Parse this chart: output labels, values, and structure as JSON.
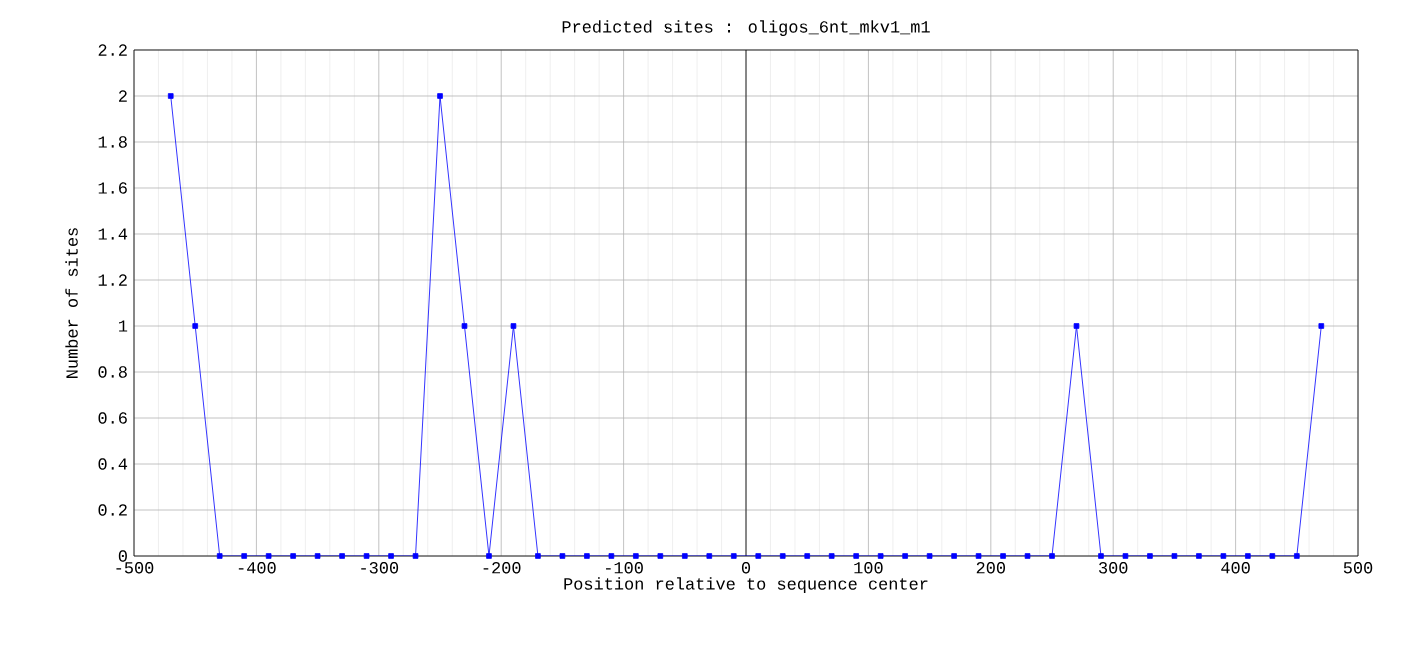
{
  "chart_data": {
    "type": "line",
    "title": "Predicted sites : oligos_6nt_mkv1_m1",
    "xlabel": "Position relative to sequence center",
    "ylabel": "Number of sites",
    "x": [
      -470,
      -450,
      -430,
      -410,
      -390,
      -370,
      -350,
      -330,
      -310,
      -290,
      -270,
      -250,
      -230,
      -210,
      -190,
      -170,
      -150,
      -130,
      -110,
      -90,
      -70,
      -50,
      -30,
      -10,
      10,
      30,
      50,
      70,
      90,
      110,
      130,
      150,
      170,
      190,
      210,
      230,
      250,
      270,
      290,
      310,
      330,
      350,
      370,
      390,
      410,
      430,
      450,
      470
    ],
    "series": [
      {
        "color": "#0000ff",
        "values": [
          2,
          1,
          0,
          0,
          0,
          0,
          0,
          0,
          0,
          0,
          0,
          2,
          1,
          0,
          1,
          0,
          0,
          0,
          0,
          0,
          0,
          0,
          0,
          0,
          0,
          0,
          0,
          0,
          0,
          0,
          0,
          0,
          0,
          0,
          0,
          0,
          0,
          1,
          0,
          0,
          0,
          0,
          0,
          0,
          0,
          0,
          0,
          1
        ]
      }
    ],
    "xlim": [
      -500,
      500
    ],
    "xticks": [
      -500,
      -400,
      -300,
      -200,
      -100,
      0,
      100,
      200,
      300,
      400,
      500
    ],
    "ylim": [
      0,
      2.2
    ],
    "yticks": [
      0,
      0.2,
      0.4,
      0.6,
      0.8,
      1,
      1.2,
      1.4,
      1.6,
      1.8,
      2,
      2.2
    ],
    "ref_lines": [
      {
        "axis": "x",
        "value": 0,
        "color": "#000000"
      }
    ],
    "grid": true,
    "legend": false,
    "marker": "square",
    "line_style": "solid"
  }
}
